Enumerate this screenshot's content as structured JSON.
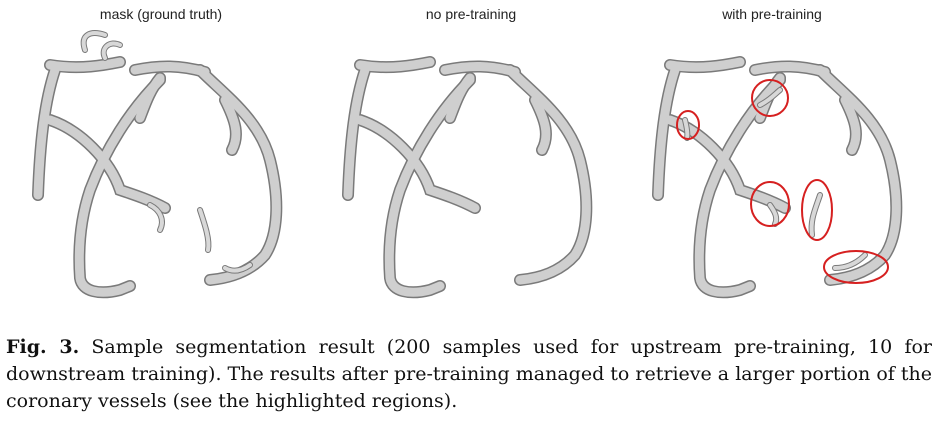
{
  "panels": [
    {
      "label": "mask (ground truth)"
    },
    {
      "label": "no pre-training"
    },
    {
      "label": "with pre-training"
    }
  ],
  "caption": {
    "prefix": "Fig. 3.",
    "text": "Sample segmentation result (200 samples used for upstream pre-training, 10 for downstream training). The results after pre-training managed to retrieve a larger portion of the coronary vessels (see the highlighted regions)."
  },
  "colors": {
    "vessel": "#c9c9c9",
    "vessel_shadow": "#7a7a7a",
    "highlight": "#d62020"
  }
}
